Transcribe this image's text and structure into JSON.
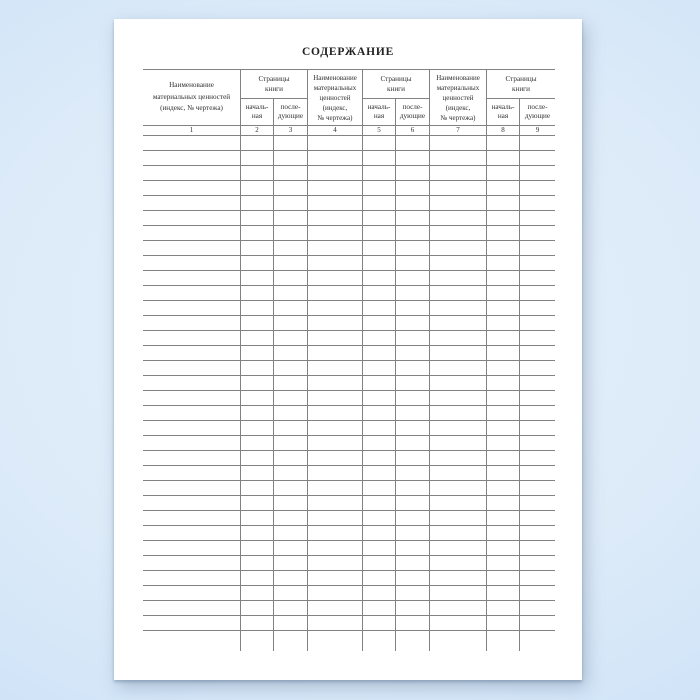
{
  "colors": {
    "background_center": "#e4effb",
    "background_edge": "#cfe3f7",
    "grid_line": "#828282",
    "text": "#2f2f2f",
    "sheet": "#ffffff"
  },
  "document": {
    "title": "СОДЕРЖАНИЕ",
    "table": {
      "headers": {
        "name_wide": "Наименование\nматериальных ценностей\n(индекс, № чертежа)",
        "name_narrow": "Наименование\nматериальных\nценностей\n(индекс,\n№ чертежа)",
        "pages_group": "Страницы\nкниги",
        "page_first": "началь-\nная",
        "page_next": "после-\nдующие"
      },
      "column_numbers": [
        "1",
        "2",
        "3",
        "4",
        "5",
        "6",
        "7",
        "8",
        "9"
      ],
      "body_row_count": 33,
      "column_count": 9
    }
  }
}
